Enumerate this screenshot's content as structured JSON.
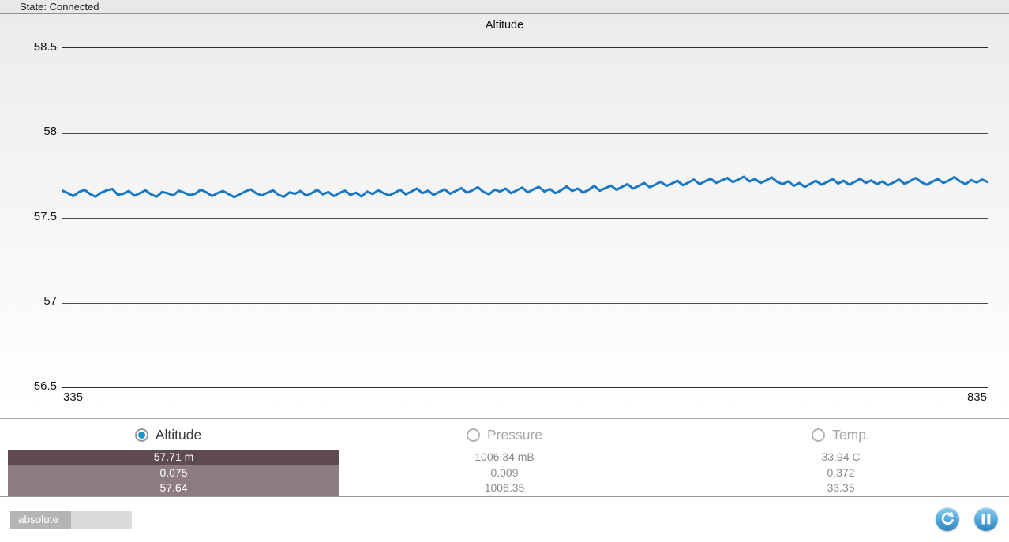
{
  "status_bar": {
    "state_label": "State: Connected"
  },
  "chart": {
    "title": "Altitude"
  },
  "chart_data": {
    "type": "line",
    "title": "Altitude",
    "xlabel": "",
    "ylabel": "",
    "x_range": [
      335,
      835
    ],
    "ylim": [
      56.5,
      58.5
    ],
    "y_ticks": [
      "58.5",
      "58",
      "57.5",
      "57",
      "56.5"
    ],
    "x_tick_labels": [
      "335",
      "835"
    ],
    "grid": true,
    "line_color": "#1878c8",
    "values": [
      57.66,
      57.645,
      57.628,
      57.652,
      57.665,
      57.64,
      57.624,
      57.648,
      57.662,
      57.67,
      57.636,
      57.642,
      57.658,
      57.63,
      57.645,
      57.662,
      57.638,
      57.624,
      57.652,
      57.645,
      57.632,
      57.66,
      57.648,
      57.634,
      57.642,
      57.666,
      57.65,
      57.628,
      57.645,
      57.658,
      57.64,
      57.622,
      57.638,
      57.655,
      57.668,
      57.644,
      57.632,
      57.648,
      57.662,
      57.635,
      57.624,
      57.65,
      57.642,
      57.658,
      57.63,
      57.645,
      57.665,
      57.638,
      57.652,
      57.628,
      57.646,
      57.66,
      57.635,
      57.648,
      57.625,
      57.655,
      57.64,
      57.662,
      57.645,
      57.632,
      57.648,
      57.665,
      57.638,
      57.655,
      57.672,
      57.645,
      57.66,
      57.635,
      57.652,
      57.668,
      57.642,
      57.658,
      57.675,
      57.648,
      57.662,
      57.68,
      57.652,
      57.638,
      57.665,
      57.655,
      57.672,
      57.645,
      57.662,
      57.678,
      57.65,
      57.668,
      57.682,
      57.655,
      57.67,
      57.645,
      57.662,
      57.685,
      57.658,
      57.672,
      57.648,
      57.665,
      57.688,
      57.66,
      57.675,
      57.69,
      57.665,
      57.682,
      57.698,
      57.672,
      57.688,
      57.705,
      57.68,
      57.695,
      57.712,
      57.688,
      57.702,
      57.718,
      57.692,
      57.708,
      57.725,
      57.698,
      57.715,
      57.73,
      57.705,
      57.72,
      57.735,
      57.71,
      57.725,
      57.742,
      57.715,
      57.728,
      57.705,
      57.72,
      57.738,
      57.712,
      57.698,
      57.715,
      57.688,
      57.705,
      57.682,
      57.7,
      57.718,
      57.695,
      57.71,
      57.728,
      57.702,
      57.718,
      57.695,
      57.712,
      57.73,
      57.705,
      57.72,
      57.698,
      57.715,
      57.692,
      57.708,
      57.725,
      57.7,
      57.716,
      57.735,
      57.71,
      57.695,
      57.712,
      57.728,
      57.705,
      57.72,
      57.74,
      57.715,
      57.698,
      57.722,
      57.708,
      57.725,
      57.71
    ]
  },
  "sensors": [
    {
      "label": "Altitude",
      "selected": true,
      "rows": [
        "57.71 m",
        "0.075",
        "57.64"
      ]
    },
    {
      "label": "Pressure",
      "selected": false,
      "rows": [
        "1006.34 mB",
        "0.009",
        "1006.35"
      ]
    },
    {
      "label": "Temp.",
      "selected": false,
      "rows": [
        "33.94 C",
        "0.372",
        "33.35"
      ]
    }
  ],
  "footer": {
    "mode_label": "absolute"
  },
  "colors": {
    "line_blue": "#1878c8",
    "radio_selected_blue": "#1e96c8",
    "highlight_row_dark": "#5e4b52",
    "highlight_row_light": "#8d7d82",
    "round_button_blue": "#2b84bd"
  }
}
